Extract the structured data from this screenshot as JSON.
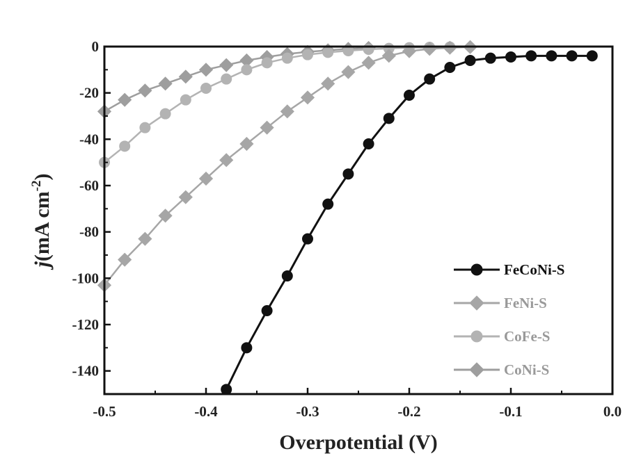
{
  "chart_data": {
    "type": "line",
    "title": "",
    "xlabel": "Overpotential (V)",
    "ylabel_main": "j",
    "ylabel_unit": "(mA cm",
    "ylabel_exp": "-2",
    "ylabel_close": ")",
    "xlim": [
      -0.5,
      0.0
    ],
    "ylim": [
      -150,
      0
    ],
    "xticks": [
      -0.5,
      -0.4,
      -0.3,
      -0.2,
      -0.1,
      0.0
    ],
    "xtick_labels": [
      "-0.5",
      "-0.4",
      "-0.3",
      "-0.2",
      "-0.1",
      "0.0"
    ],
    "yticks": [
      0,
      -20,
      -40,
      -60,
      -80,
      -100,
      -120,
      -140
    ],
    "ytick_labels": [
      "0",
      "-20",
      "-40",
      "-60",
      "-80",
      "-100",
      "-120",
      "-140"
    ],
    "legend_position": "bottom-right",
    "series": [
      {
        "name": "FeCoNi-S",
        "color": "#111111",
        "marker": "circle",
        "x": [
          -0.38,
          -0.36,
          -0.34,
          -0.32,
          -0.3,
          -0.28,
          -0.26,
          -0.24,
          -0.22,
          -0.2,
          -0.18,
          -0.16,
          -0.14,
          -0.12,
          -0.1,
          -0.08,
          -0.06,
          -0.04,
          -0.02
        ],
        "y": [
          -148,
          -130,
          -114,
          -99,
          -83,
          -68,
          -55,
          -42,
          -31,
          -21,
          -14,
          -9,
          -6,
          -5,
          -4.5,
          -4,
          -4,
          -4,
          -4
        ]
      },
      {
        "name": "FeNi-S",
        "color": "#a6a6a6",
        "marker": "diamond",
        "x": [
          -0.5,
          -0.48,
          -0.46,
          -0.44,
          -0.42,
          -0.4,
          -0.38,
          -0.36,
          -0.34,
          -0.32,
          -0.3,
          -0.28,
          -0.26,
          -0.24,
          -0.22,
          -0.2,
          -0.18,
          -0.16,
          -0.14
        ],
        "y": [
          -103,
          -92,
          -83,
          -73,
          -65,
          -57,
          -49,
          -42,
          -35,
          -28,
          -22,
          -16,
          -11,
          -7,
          -4,
          -2,
          -1,
          -0.5,
          -0.2
        ]
      },
      {
        "name": "CoFe-S",
        "color": "#b3b3b3",
        "marker": "circle",
        "x": [
          -0.5,
          -0.48,
          -0.46,
          -0.44,
          -0.42,
          -0.4,
          -0.38,
          -0.36,
          -0.34,
          -0.32,
          -0.3,
          -0.28,
          -0.26,
          -0.24,
          -0.22,
          -0.2,
          -0.18,
          -0.16
        ],
        "y": [
          -50,
          -43,
          -35,
          -29,
          -23,
          -18,
          -14,
          -10,
          -7,
          -5,
          -3.5,
          -2.5,
          -1.8,
          -1.2,
          -0.8,
          -0.5,
          -0.3,
          -0.2
        ]
      },
      {
        "name": "CoNi-S",
        "color": "#9e9e9e",
        "marker": "diamond",
        "x": [
          -0.5,
          -0.48,
          -0.46,
          -0.44,
          -0.42,
          -0.4,
          -0.38,
          -0.36,
          -0.34,
          -0.32,
          -0.3,
          -0.28,
          -0.26,
          -0.24
        ],
        "y": [
          -28,
          -23,
          -19,
          -16,
          -13,
          -10,
          -8,
          -6,
          -4.5,
          -3.2,
          -2.3,
          -1.6,
          -1.0,
          -0.6
        ]
      }
    ]
  }
}
